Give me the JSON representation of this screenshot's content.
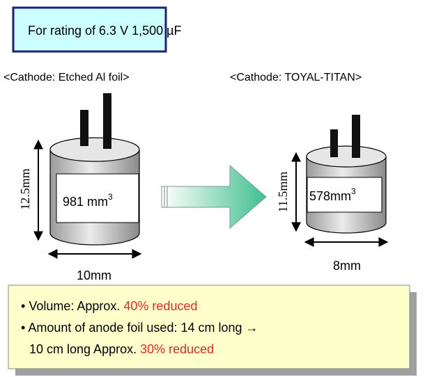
{
  "title": "For rating of 6.3 V 1,500 µF",
  "capacitors": [
    {
      "label": "<Cathode: Etched Al foil>",
      "height": "12.5mm",
      "volume": "981 mm",
      "volume_exponent": "3",
      "width": "10mm"
    },
    {
      "label": "<Cathode: TOYAL-TITAN>",
      "height": "11.5mm",
      "volume": "578mm",
      "volume_exponent": "3",
      "width": "8mm"
    }
  ],
  "notes": [
    {
      "text": [
        "Volume: Approx. "
      ],
      "highlight": "40% reduced"
    },
    {
      "text": [
        "Amount of anode foil used: 14 cm long →",
        "10 cm long Approx. "
      ],
      "highlight": "30% reduced"
    }
  ]
}
